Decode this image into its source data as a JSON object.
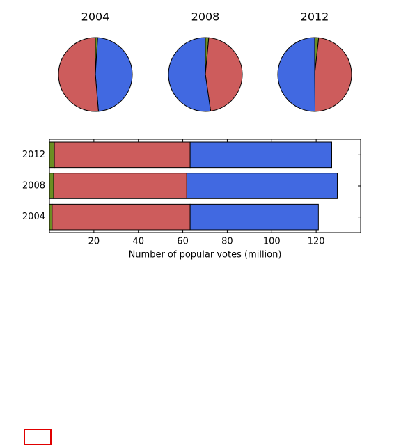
{
  "chart_data": [
    {
      "type": "pie",
      "title": "2004",
      "values": [
        1.2,
        57.7,
        62.1
      ],
      "colors": [
        "#6b8e23",
        "#4169e1",
        "#cd5c5c"
      ]
    },
    {
      "type": "pie",
      "title": "2008",
      "values": [
        1.9,
        59.9,
        67.7
      ],
      "colors": [
        "#6b8e23",
        "#cd5c5c",
        "#4169e1"
      ]
    },
    {
      "type": "pie",
      "title": "2012",
      "values": [
        2.2,
        61.1,
        63.7
      ],
      "colors": [
        "#6b8e23",
        "#cd5c5c",
        "#4169e1"
      ]
    },
    {
      "type": "barh",
      "xlabel": "Number of popular votes (million)",
      "categories": [
        "2004",
        "2008",
        "2012"
      ],
      "series": [
        {
          "color": "#6b8e23",
          "values": [
            1.2,
            1.9,
            2.2
          ]
        },
        {
          "color": "#cd5c5c",
          "values": [
            62.1,
            59.9,
            61.1
          ]
        },
        {
          "color": "#4169e1",
          "values": [
            57.7,
            67.7,
            63.7
          ]
        }
      ],
      "xlim": [
        0,
        140
      ],
      "xticks": [
        20,
        40,
        60,
        80,
        100,
        120
      ]
    }
  ]
}
